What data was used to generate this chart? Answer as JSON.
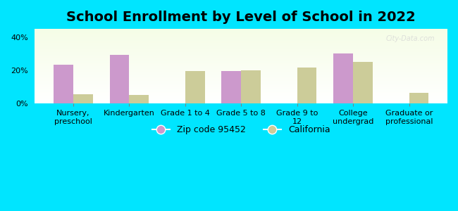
{
  "title": "School Enrollment by Level of School in 2022",
  "categories": [
    "Nursery,\npreschool",
    "Kindergarten",
    "Grade 1 to 4",
    "Grade 5 to 8",
    "Grade 9 to\n12",
    "College\nundergrad",
    "Graduate or\nprofessional"
  ],
  "zip_values": [
    23.5,
    29.5,
    0,
    19.5,
    0,
    30.0,
    0
  ],
  "ca_values": [
    5.5,
    5.0,
    19.5,
    20.0,
    21.5,
    25.0,
    6.5
  ],
  "zip_color": "#cc99cc",
  "ca_color": "#cccc99",
  "background_outer": "#00e5ff",
  "ylim": [
    0,
    45
  ],
  "yticks": [
    0,
    20,
    40
  ],
  "ytick_labels": [
    "0%",
    "20%",
    "40%"
  ],
  "zip_label": "Zip code 95452",
  "ca_label": "California",
  "bar_width": 0.35,
  "title_fontsize": 14,
  "tick_fontsize": 8,
  "legend_fontsize": 9,
  "watermark": "City-Data.com"
}
